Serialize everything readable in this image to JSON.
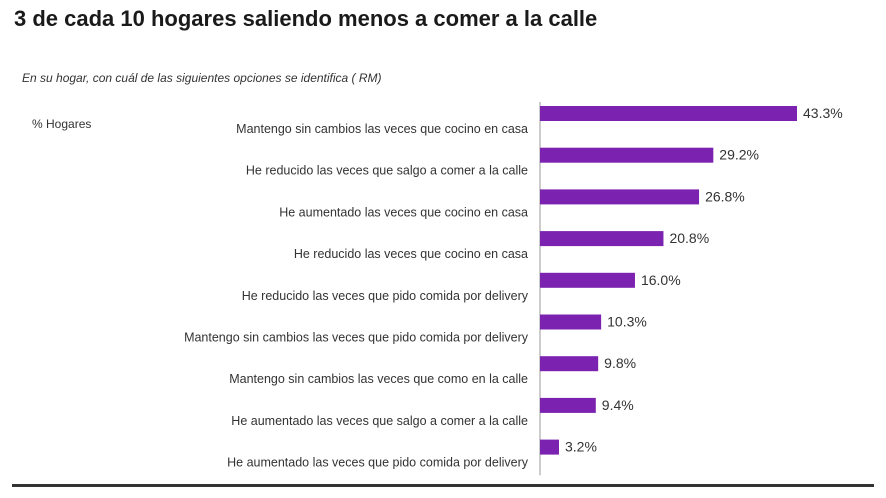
{
  "title": "3 de cada 10 hogares saliendo menos a comer a la calle",
  "subtitle": "En su hogar, con cuál de las siguientes opciones se identifica ( RM)",
  "unit_label": "% Hogares",
  "colors": {
    "bar": "#7B22B0",
    "axis": "#999999",
    "text": "#333333"
  },
  "chart_data": {
    "type": "bar",
    "orientation": "horizontal",
    "categories": [
      "Mantengo sin cambios las veces que cocino en casa",
      "He reducido las veces que salgo a comer a la calle",
      "He aumentado las veces que cocino en casa",
      "He reducido las veces que cocino en casa",
      "He reducido las veces que pido comida por delivery",
      "Mantengo sin cambios las veces que pido comida por delivery",
      "Mantengo sin cambios las veces que como en la calle",
      "He aumentado las veces que salgo a comer a la calle",
      "He aumentado las veces que pido comida por delivery"
    ],
    "values": [
      43.3,
      29.2,
      26.8,
      20.8,
      16.0,
      10.3,
      9.8,
      9.4,
      3.2
    ],
    "labels": [
      "43.3%",
      "29.2%",
      "26.8%",
      "20.8%",
      "16.0%",
      "10.3%",
      "9.8%",
      "9.4%",
      "3.2%"
    ],
    "title": "3 de cada 10 hogares saliendo menos a comer a la calle",
    "xlim": [
      0,
      100
    ],
    "grid": false,
    "legend": "none"
  }
}
